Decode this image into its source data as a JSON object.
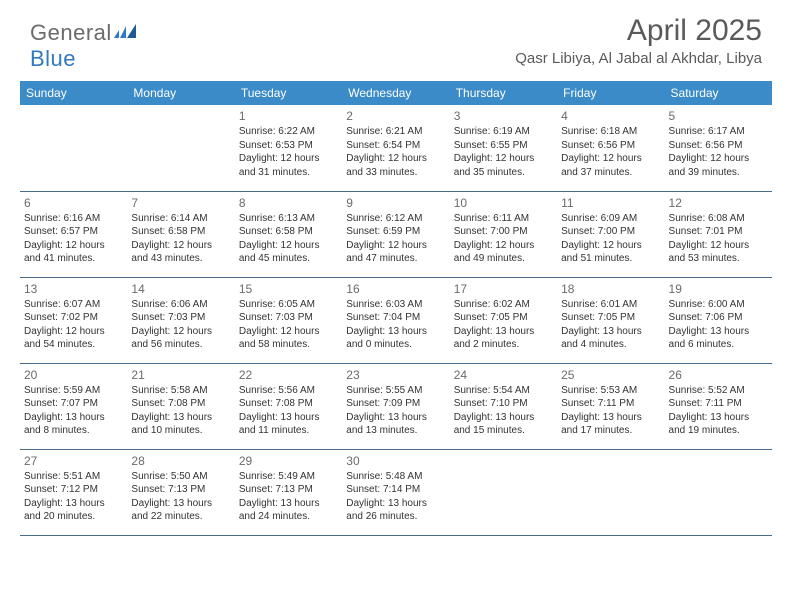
{
  "logo": {
    "word1": "General",
    "word2": "Blue"
  },
  "title": "April 2025",
  "location": "Qasr Libiya, Al Jabal al Akhdar, Libya",
  "colors": {
    "header_bg": "#3b8bc8",
    "header_text": "#ffffff",
    "border": "#4a6a8a",
    "body_text": "#333333",
    "muted": "#6b6b6b",
    "logo_blue": "#2f7ac0"
  },
  "day_headers": [
    "Sunday",
    "Monday",
    "Tuesday",
    "Wednesday",
    "Thursday",
    "Friday",
    "Saturday"
  ],
  "weeks": [
    [
      {
        "day": "",
        "sunrise": "",
        "sunset": "",
        "daylight": ""
      },
      {
        "day": "",
        "sunrise": "",
        "sunset": "",
        "daylight": ""
      },
      {
        "day": "1",
        "sunrise": "Sunrise: 6:22 AM",
        "sunset": "Sunset: 6:53 PM",
        "daylight": "Daylight: 12 hours and 31 minutes."
      },
      {
        "day": "2",
        "sunrise": "Sunrise: 6:21 AM",
        "sunset": "Sunset: 6:54 PM",
        "daylight": "Daylight: 12 hours and 33 minutes."
      },
      {
        "day": "3",
        "sunrise": "Sunrise: 6:19 AM",
        "sunset": "Sunset: 6:55 PM",
        "daylight": "Daylight: 12 hours and 35 minutes."
      },
      {
        "day": "4",
        "sunrise": "Sunrise: 6:18 AM",
        "sunset": "Sunset: 6:56 PM",
        "daylight": "Daylight: 12 hours and 37 minutes."
      },
      {
        "day": "5",
        "sunrise": "Sunrise: 6:17 AM",
        "sunset": "Sunset: 6:56 PM",
        "daylight": "Daylight: 12 hours and 39 minutes."
      }
    ],
    [
      {
        "day": "6",
        "sunrise": "Sunrise: 6:16 AM",
        "sunset": "Sunset: 6:57 PM",
        "daylight": "Daylight: 12 hours and 41 minutes."
      },
      {
        "day": "7",
        "sunrise": "Sunrise: 6:14 AM",
        "sunset": "Sunset: 6:58 PM",
        "daylight": "Daylight: 12 hours and 43 minutes."
      },
      {
        "day": "8",
        "sunrise": "Sunrise: 6:13 AM",
        "sunset": "Sunset: 6:58 PM",
        "daylight": "Daylight: 12 hours and 45 minutes."
      },
      {
        "day": "9",
        "sunrise": "Sunrise: 6:12 AM",
        "sunset": "Sunset: 6:59 PM",
        "daylight": "Daylight: 12 hours and 47 minutes."
      },
      {
        "day": "10",
        "sunrise": "Sunrise: 6:11 AM",
        "sunset": "Sunset: 7:00 PM",
        "daylight": "Daylight: 12 hours and 49 minutes."
      },
      {
        "day": "11",
        "sunrise": "Sunrise: 6:09 AM",
        "sunset": "Sunset: 7:00 PM",
        "daylight": "Daylight: 12 hours and 51 minutes."
      },
      {
        "day": "12",
        "sunrise": "Sunrise: 6:08 AM",
        "sunset": "Sunset: 7:01 PM",
        "daylight": "Daylight: 12 hours and 53 minutes."
      }
    ],
    [
      {
        "day": "13",
        "sunrise": "Sunrise: 6:07 AM",
        "sunset": "Sunset: 7:02 PM",
        "daylight": "Daylight: 12 hours and 54 minutes."
      },
      {
        "day": "14",
        "sunrise": "Sunrise: 6:06 AM",
        "sunset": "Sunset: 7:03 PM",
        "daylight": "Daylight: 12 hours and 56 minutes."
      },
      {
        "day": "15",
        "sunrise": "Sunrise: 6:05 AM",
        "sunset": "Sunset: 7:03 PM",
        "daylight": "Daylight: 12 hours and 58 minutes."
      },
      {
        "day": "16",
        "sunrise": "Sunrise: 6:03 AM",
        "sunset": "Sunset: 7:04 PM",
        "daylight": "Daylight: 13 hours and 0 minutes."
      },
      {
        "day": "17",
        "sunrise": "Sunrise: 6:02 AM",
        "sunset": "Sunset: 7:05 PM",
        "daylight": "Daylight: 13 hours and 2 minutes."
      },
      {
        "day": "18",
        "sunrise": "Sunrise: 6:01 AM",
        "sunset": "Sunset: 7:05 PM",
        "daylight": "Daylight: 13 hours and 4 minutes."
      },
      {
        "day": "19",
        "sunrise": "Sunrise: 6:00 AM",
        "sunset": "Sunset: 7:06 PM",
        "daylight": "Daylight: 13 hours and 6 minutes."
      }
    ],
    [
      {
        "day": "20",
        "sunrise": "Sunrise: 5:59 AM",
        "sunset": "Sunset: 7:07 PM",
        "daylight": "Daylight: 13 hours and 8 minutes."
      },
      {
        "day": "21",
        "sunrise": "Sunrise: 5:58 AM",
        "sunset": "Sunset: 7:08 PM",
        "daylight": "Daylight: 13 hours and 10 minutes."
      },
      {
        "day": "22",
        "sunrise": "Sunrise: 5:56 AM",
        "sunset": "Sunset: 7:08 PM",
        "daylight": "Daylight: 13 hours and 11 minutes."
      },
      {
        "day": "23",
        "sunrise": "Sunrise: 5:55 AM",
        "sunset": "Sunset: 7:09 PM",
        "daylight": "Daylight: 13 hours and 13 minutes."
      },
      {
        "day": "24",
        "sunrise": "Sunrise: 5:54 AM",
        "sunset": "Sunset: 7:10 PM",
        "daylight": "Daylight: 13 hours and 15 minutes."
      },
      {
        "day": "25",
        "sunrise": "Sunrise: 5:53 AM",
        "sunset": "Sunset: 7:11 PM",
        "daylight": "Daylight: 13 hours and 17 minutes."
      },
      {
        "day": "26",
        "sunrise": "Sunrise: 5:52 AM",
        "sunset": "Sunset: 7:11 PM",
        "daylight": "Daylight: 13 hours and 19 minutes."
      }
    ],
    [
      {
        "day": "27",
        "sunrise": "Sunrise: 5:51 AM",
        "sunset": "Sunset: 7:12 PM",
        "daylight": "Daylight: 13 hours and 20 minutes."
      },
      {
        "day": "28",
        "sunrise": "Sunrise: 5:50 AM",
        "sunset": "Sunset: 7:13 PM",
        "daylight": "Daylight: 13 hours and 22 minutes."
      },
      {
        "day": "29",
        "sunrise": "Sunrise: 5:49 AM",
        "sunset": "Sunset: 7:13 PM",
        "daylight": "Daylight: 13 hours and 24 minutes."
      },
      {
        "day": "30",
        "sunrise": "Sunrise: 5:48 AM",
        "sunset": "Sunset: 7:14 PM",
        "daylight": "Daylight: 13 hours and 26 minutes."
      },
      {
        "day": "",
        "sunrise": "",
        "sunset": "",
        "daylight": ""
      },
      {
        "day": "",
        "sunrise": "",
        "sunset": "",
        "daylight": ""
      },
      {
        "day": "",
        "sunrise": "",
        "sunset": "",
        "daylight": ""
      }
    ]
  ]
}
